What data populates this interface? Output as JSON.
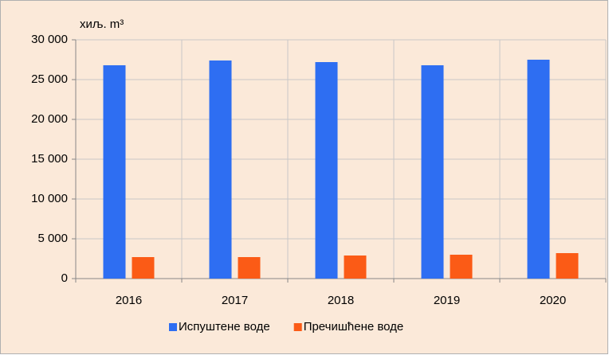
{
  "chart_data": {
    "type": "bar",
    "y_label": "хиљ. m³",
    "categories": [
      "2016",
      "2017",
      "2018",
      "2019",
      "2020"
    ],
    "series": [
      {
        "name": "Испуштене воде",
        "color": "#2e6ef2",
        "values": [
          26800,
          27400,
          27200,
          26800,
          27500
        ]
      },
      {
        "name": "Пречишћене воде",
        "color": "#fb5b16",
        "values": [
          2700,
          2700,
          2900,
          3000,
          3200
        ]
      }
    ],
    "ylim": [
      0,
      30000
    ],
    "yticks": [
      0,
      {
        "value": 5000,
        "label": "5 000"
      },
      {
        "value": 10000,
        "label": "10 000"
      },
      {
        "value": 15000,
        "label": "15 000"
      },
      {
        "value": 20000,
        "label": "20 000"
      },
      {
        "value": 25000,
        "label": "25 000"
      },
      {
        "value": 30000,
        "label": "30 000"
      }
    ],
    "grid": true,
    "legend": "bottom"
  }
}
